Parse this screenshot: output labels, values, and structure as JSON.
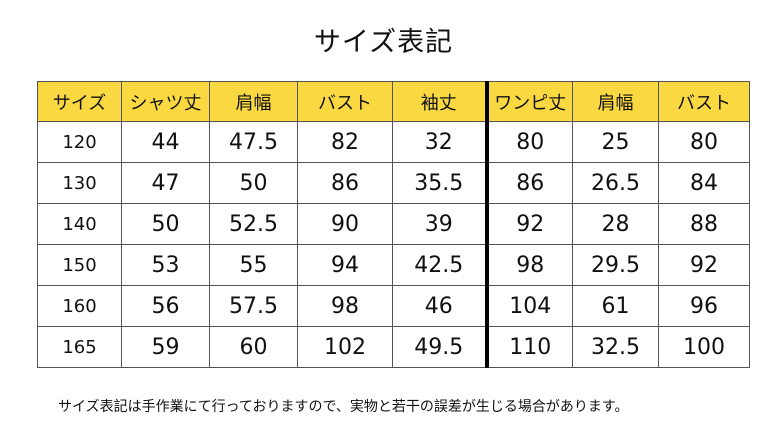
{
  "title": "サイズ表記",
  "table": {
    "headers": [
      "サイズ",
      "シャツ丈",
      "肩幅",
      "バスト",
      "袖丈",
      "ワンピ丈",
      "肩幅",
      "バスト"
    ],
    "rows": [
      [
        "120",
        "44",
        "47.5",
        "82",
        "32",
        "80",
        "25",
        "80"
      ],
      [
        "130",
        "47",
        "50",
        "86",
        "35.5",
        "86",
        "26.5",
        "84"
      ],
      [
        "140",
        "50",
        "52.5",
        "90",
        "39",
        "92",
        "28",
        "88"
      ],
      [
        "150",
        "53",
        "55",
        "94",
        "42.5",
        "98",
        "29.5",
        "92"
      ],
      [
        "160",
        "56",
        "57.5",
        "98",
        "46",
        "104",
        "61",
        "96"
      ],
      [
        "165",
        "59",
        "60",
        "102",
        "49.5",
        "110",
        "32.5",
        "100"
      ]
    ],
    "header_color": "#f9d842"
  },
  "note": "サイズ表記は手作業にて行っておりますので、実物と若干の誤差が生じる場合があります。"
}
